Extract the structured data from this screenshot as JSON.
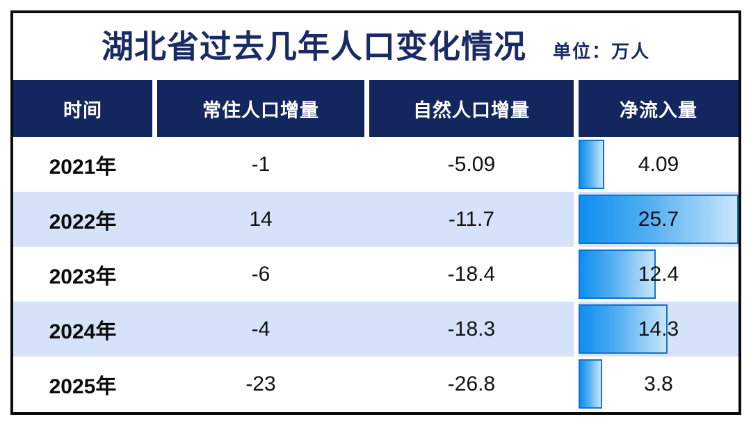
{
  "title": {
    "text": "湖北省过去几年人口变化情况",
    "unit": "单位：万人"
  },
  "colors": {
    "navy_header": "#13265e",
    "title_text": "#1a2a63",
    "row_alt": "#d6e2f8",
    "bar_gradient_start": "#0d8ef0",
    "bar_gradient_end": "#c9e6fb",
    "bar_border": "#1273cf",
    "frame_border": "#0c0c0c"
  },
  "table": {
    "columns": [
      "时间",
      "常住人口增量",
      "自然人口增量",
      "净流入量"
    ],
    "rows": [
      {
        "year": "2021年",
        "resident": "-1",
        "natural": "-5.09",
        "net": "4.09"
      },
      {
        "year": "2022年",
        "resident": "14",
        "natural": "-11.7",
        "net": "25.7"
      },
      {
        "year": "2023年",
        "resident": "-6",
        "natural": "-18.4",
        "net": "12.4"
      },
      {
        "year": "2024年",
        "resident": "-4",
        "natural": "-18.3",
        "net": "14.3"
      },
      {
        "year": "2025年",
        "resident": "-23",
        "natural": "-26.8",
        "net": "3.8"
      }
    ],
    "bar_max": 25.7
  },
  "chart_data": {
    "type": "table",
    "title": "湖北省过去几年人口变化情况",
    "unit": "万人",
    "columns": [
      "时间",
      "常住人口增量",
      "自然人口增量",
      "净流入量"
    ],
    "rows": [
      [
        "2021年",
        -1,
        -5.09,
        4.09
      ],
      [
        "2022年",
        14,
        -11.7,
        25.7
      ],
      [
        "2023年",
        -6,
        -18.4,
        12.4
      ],
      [
        "2024年",
        -4,
        -18.3,
        14.3
      ],
      [
        "2025年",
        -23,
        -26.8,
        3.8
      ]
    ],
    "bar_column": "净流入量",
    "bar_axis_max": 25.7,
    "layout": "alternating row stripes; horizontal left-anchored gradient bars embedded in last column; value labels centered over bars"
  }
}
